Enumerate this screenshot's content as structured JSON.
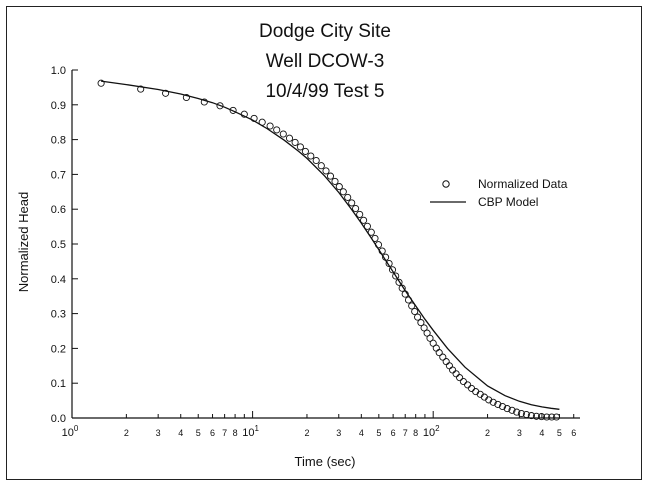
{
  "chart_data": {
    "type": "scatter",
    "title_lines": [
      "Dodge City Site",
      "Well DCOW-3",
      "10/4/99 Test 5"
    ],
    "xlabel": "Time (sec)",
    "ylabel": "Normalized Head",
    "x_scale": "log",
    "xlim": [
      1,
      650
    ],
    "ylim": [
      0,
      1.0
    ],
    "x_major_ticks": [
      {
        "base": "10",
        "exp": "0"
      },
      {
        "base": "10",
        "exp": "1"
      },
      {
        "base": "10",
        "exp": "2"
      }
    ],
    "x_minor_tick_labels": [
      "2",
      "3",
      "4",
      "5",
      "6",
      "7",
      "8",
      "2",
      "3",
      "4",
      "5",
      "6",
      "7",
      "8",
      "2",
      "3",
      "4",
      "5",
      "6"
    ],
    "y_tick_labels": [
      "0.0",
      "0.1",
      "0.2",
      "0.3",
      "0.4",
      "0.5",
      "0.6",
      "0.7",
      "0.8",
      "0.9",
      "1.0"
    ],
    "grid": false,
    "legend_placement": "right-middle",
    "series": [
      {
        "name": "Normalized Data",
        "type": "scatter",
        "marker": "open-circle",
        "x": [
          1.45,
          2.4,
          3.3,
          4.3,
          5.4,
          6.6,
          7.8,
          9.0,
          10.2,
          11.3,
          12.5,
          13.6,
          14.8,
          16.0,
          17.2,
          18.4,
          19.6,
          21.0,
          22.5,
          24.0,
          25.5,
          27.0,
          28.6,
          30.2,
          31.8,
          33.6,
          35.4,
          37.2,
          39.2,
          41.2,
          43.2,
          45.4,
          47.6,
          49.8,
          52.2,
          54.5,
          57.0,
          59.5,
          62.0,
          64.7,
          67.4,
          70.0,
          73.0,
          76.0,
          79.0,
          82.0,
          85.5,
          89.0,
          92.5,
          96.0,
          100.0,
          104.0,
          108.0,
          113.0,
          118.0,
          123.0,
          128.0,
          134.0,
          140.0,
          147.0,
          155.0,
          163.0,
          172.0,
          182.0,
          192.0,
          203.0,
          215.0,
          228.0,
          242.0,
          257.0,
          273.0,
          290.0,
          308.0,
          328.0,
          350.0,
          373.0,
          398.0,
          425.0,
          453.0,
          482.0
        ],
        "y": [
          0.962,
          0.945,
          0.933,
          0.921,
          0.908,
          0.897,
          0.884,
          0.873,
          0.861,
          0.85,
          0.839,
          0.828,
          0.816,
          0.804,
          0.792,
          0.779,
          0.766,
          0.753,
          0.74,
          0.725,
          0.71,
          0.695,
          0.68,
          0.665,
          0.65,
          0.634,
          0.618,
          0.602,
          0.585,
          0.568,
          0.551,
          0.534,
          0.516,
          0.498,
          0.48,
          0.462,
          0.444,
          0.426,
          0.408,
          0.39,
          0.373,
          0.356,
          0.339,
          0.322,
          0.306,
          0.29,
          0.274,
          0.259,
          0.244,
          0.229,
          0.215,
          0.201,
          0.188,
          0.175,
          0.162,
          0.15,
          0.138,
          0.127,
          0.116,
          0.105,
          0.095,
          0.085,
          0.076,
          0.068,
          0.06,
          0.052,
          0.045,
          0.039,
          0.033,
          0.027,
          0.022,
          0.017,
          0.013,
          0.01,
          0.007,
          0.005,
          0.004,
          0.003,
          0.003,
          0.003
        ]
      },
      {
        "name": "CBP Model",
        "type": "line",
        "x": [
          1.45,
          2,
          3,
          4,
          5,
          6,
          7,
          8,
          10,
          12,
          15,
          18,
          20,
          25,
          30,
          35,
          40,
          45,
          50,
          55,
          60,
          65,
          70,
          80,
          90,
          100,
          120,
          150,
          200,
          250,
          300,
          350,
          400,
          450,
          500
        ],
        "y": [
          0.968,
          0.958,
          0.944,
          0.931,
          0.918,
          0.906,
          0.893,
          0.88,
          0.856,
          0.832,
          0.798,
          0.766,
          0.746,
          0.696,
          0.648,
          0.602,
          0.56,
          0.52,
          0.484,
          0.45,
          0.42,
          0.392,
          0.366,
          0.322,
          0.284,
          0.252,
          0.2,
          0.146,
          0.092,
          0.064,
          0.048,
          0.038,
          0.032,
          0.028,
          0.025
        ]
      }
    ]
  }
}
